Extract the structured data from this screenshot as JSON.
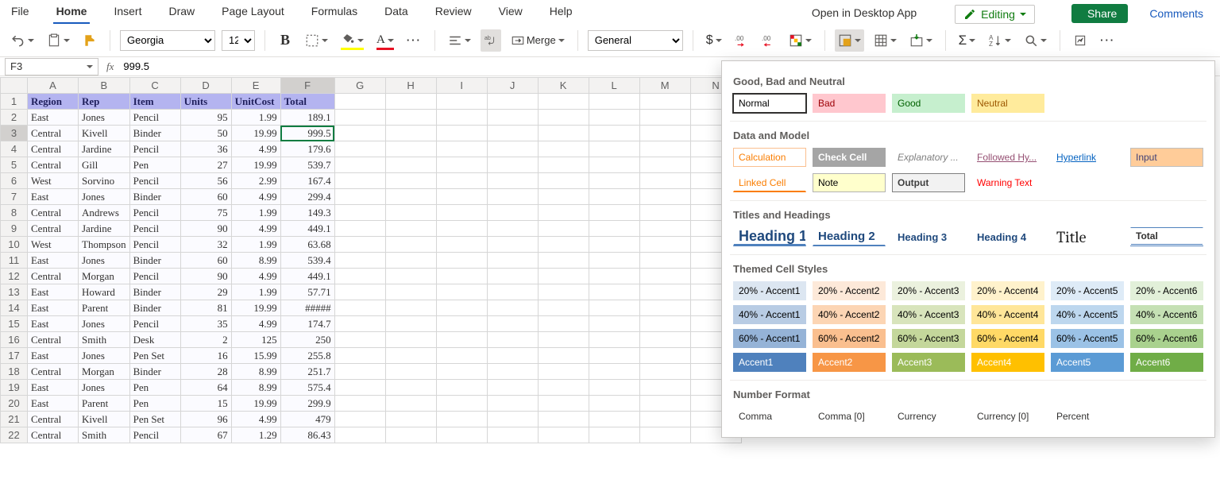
{
  "menu": {
    "tabs": [
      "File",
      "Home",
      "Insert",
      "Draw",
      "Page Layout",
      "Formulas",
      "Data",
      "Review",
      "View",
      "Help"
    ],
    "active": 1,
    "open_desktop": "Open in Desktop App",
    "editing": "Editing",
    "share": "Share",
    "comments": "Comments"
  },
  "ribbon": {
    "font_name": "Georgia",
    "font_size": "12",
    "merge": "Merge",
    "number_format": "General"
  },
  "namebox": "F3",
  "formula": "999.5",
  "columns": [
    "A",
    "B",
    "C",
    "D",
    "E",
    "F",
    "G",
    "H",
    "I",
    "J",
    "K",
    "L",
    "M",
    "N"
  ],
  "headers": [
    "Region",
    "Rep",
    "Item",
    "Units",
    "UnitCost",
    "Total"
  ],
  "rows": [
    [
      "East",
      "Jones",
      "Pencil",
      "95",
      "1.99",
      "189.1"
    ],
    [
      "Central",
      "Kivell",
      "Binder",
      "50",
      "19.99",
      "999.5"
    ],
    [
      "Central",
      "Jardine",
      "Pencil",
      "36",
      "4.99",
      "179.6"
    ],
    [
      "Central",
      "Gill",
      "Pen",
      "27",
      "19.99",
      "539.7"
    ],
    [
      "West",
      "Sorvino",
      "Pencil",
      "56",
      "2.99",
      "167.4"
    ],
    [
      "East",
      "Jones",
      "Binder",
      "60",
      "4.99",
      "299.4"
    ],
    [
      "Central",
      "Andrews",
      "Pencil",
      "75",
      "1.99",
      "149.3"
    ],
    [
      "Central",
      "Jardine",
      "Pencil",
      "90",
      "4.99",
      "449.1"
    ],
    [
      "West",
      "Thompson",
      "Pencil",
      "32",
      "1.99",
      "63.68"
    ],
    [
      "East",
      "Jones",
      "Binder",
      "60",
      "8.99",
      "539.4"
    ],
    [
      "Central",
      "Morgan",
      "Pencil",
      "90",
      "4.99",
      "449.1"
    ],
    [
      "East",
      "Howard",
      "Binder",
      "29",
      "1.99",
      "57.71"
    ],
    [
      "East",
      "Parent",
      "Binder",
      "81",
      "19.99",
      "#####"
    ],
    [
      "East",
      "Jones",
      "Pencil",
      "35",
      "4.99",
      "174.7"
    ],
    [
      "Central",
      "Smith",
      "Desk",
      "2",
      "125",
      "250"
    ],
    [
      "East",
      "Jones",
      "Pen Set",
      "16",
      "15.99",
      "255.8"
    ],
    [
      "Central",
      "Morgan",
      "Binder",
      "28",
      "8.99",
      "251.7"
    ],
    [
      "East",
      "Jones",
      "Pen",
      "64",
      "8.99",
      "575.4"
    ],
    [
      "East",
      "Parent",
      "Pen",
      "15",
      "19.99",
      "299.9"
    ],
    [
      "Central",
      "Kivell",
      "Pen Set",
      "96",
      "4.99",
      "479"
    ],
    [
      "Central",
      "Smith",
      "Pencil",
      "67",
      "1.29",
      "86.43"
    ]
  ],
  "active_cell": {
    "row": 3,
    "col": "F"
  },
  "styles_panel": {
    "g1_title": "Good, Bad and Neutral",
    "g1": [
      {
        "label": "Normal",
        "bg": "#ffffff",
        "fg": "#000",
        "border": "#8a8886",
        "selected": true
      },
      {
        "label": "Bad",
        "bg": "#ffc7ce",
        "fg": "#9c0006"
      },
      {
        "label": "Good",
        "bg": "#c6efce",
        "fg": "#006100"
      },
      {
        "label": "Neutral",
        "bg": "#ffeb9c",
        "fg": "#9c5700"
      }
    ],
    "g2_title": "Data and Model",
    "g2": [
      {
        "label": "Calculation",
        "bg": "#ffffff",
        "fg": "#fa7d00",
        "border": "#fabf8f"
      },
      {
        "label": "Check Cell",
        "bg": "#a5a5a5",
        "fg": "#ffffff",
        "bold": true
      },
      {
        "label": "Explanatory ...",
        "bg": "#ffffff",
        "fg": "#7f7f7f",
        "italic": true
      },
      {
        "label": "Followed Hy...",
        "bg": "#ffffff",
        "fg": "#954f72",
        "underline": true
      },
      {
        "label": "Hyperlink",
        "bg": "#ffffff",
        "fg": "#0563c1",
        "underline": true
      },
      {
        "label": "Input",
        "bg": "#ffcc99",
        "fg": "#3f3f76",
        "border": "#bfbfbf"
      },
      {
        "label": "Linked Cell",
        "bg": "#ffffff",
        "fg": "#fa7d00",
        "underbar": "#fa7d00"
      },
      {
        "label": "Note",
        "bg": "#ffffcc",
        "fg": "#000",
        "border": "#b2b2b2"
      },
      {
        "label": "Output",
        "bg": "#f2f2f2",
        "fg": "#3f3f3f",
        "border": "#7f7f7f",
        "bold": true
      },
      {
        "label": "Warning Text",
        "bg": "#ffffff",
        "fg": "#ff0000"
      }
    ],
    "g3_title": "Titles and Headings",
    "g3": [
      {
        "label": "Heading 1",
        "cls": "hd1"
      },
      {
        "label": "Heading 2",
        "cls": "hd2"
      },
      {
        "label": "Heading 3",
        "cls": "hd3"
      },
      {
        "label": "Heading 4",
        "cls": "hd4"
      },
      {
        "label": "Title",
        "cls": "title-sw"
      },
      {
        "label": "Total",
        "cls": "total-sw"
      }
    ],
    "g4_title": "Themed Cell Styles",
    "accents": [
      {
        "name": "Accent1",
        "c20": "#dce6f1",
        "c40": "#b8cce4",
        "c60": "#95b3d7",
        "c100": "#4f81bd"
      },
      {
        "name": "Accent2",
        "c20": "#fde9d9",
        "c40": "#fcd5b4",
        "c60": "#fabf8f",
        "c100": "#f79646"
      },
      {
        "name": "Accent3",
        "c20": "#ebf1de",
        "c40": "#d8e4bc",
        "c60": "#c4d79b",
        "c100": "#9bbb59"
      },
      {
        "name": "Accent4",
        "c20": "#fff2cc",
        "c40": "#ffe699",
        "c60": "#ffd966",
        "c100": "#ffc000"
      },
      {
        "name": "Accent5",
        "c20": "#deebf7",
        "c40": "#bdd7ee",
        "c60": "#9bc2e6",
        "c100": "#5b9bd5"
      },
      {
        "name": "Accent6",
        "c20": "#e2f0d9",
        "c40": "#c5e0b4",
        "c60": "#a9d18e",
        "c100": "#70ad47"
      }
    ],
    "g5_title": "Number Format",
    "g5": [
      "Comma",
      "Comma [0]",
      "Currency",
      "Currency [0]",
      "Percent"
    ]
  }
}
